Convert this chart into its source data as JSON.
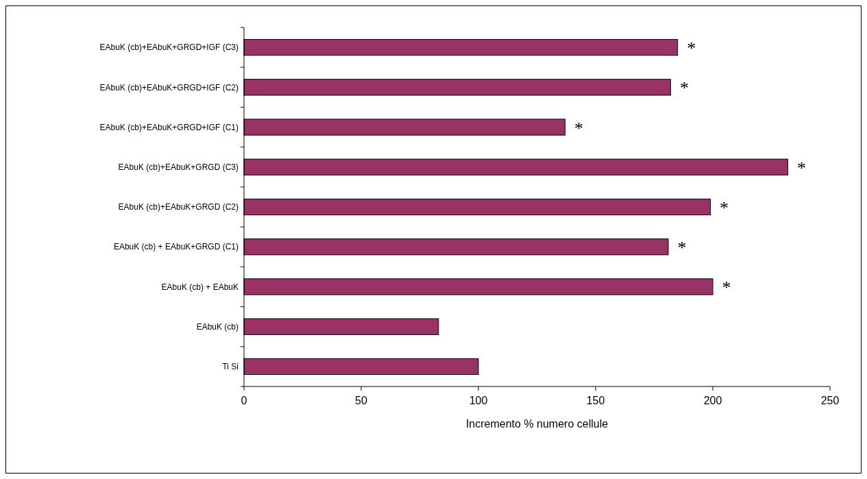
{
  "chart_data": {
    "type": "bar",
    "orientation": "horizontal",
    "xlabel": "Incremento % numero cellule",
    "categories": [
      "EAbuK (cb)+EAbuK+GRGD+IGF (C3)",
      "EAbuK (cb)+EAbuK+GRGD+IGF (C2)",
      "EAbuK (cb)+EAbuK+GRGD+IGF (C1)",
      "EAbuK (cb)+EAbuK+GRGD (C3)",
      "EAbuK (cb)+EAbuK+GRGD (C2)",
      "EAbuK (cb) + EAbuK+GRGD (C1)",
      "EAbuK (cb) + EAbuK",
      "EAbuK (cb)",
      "Ti Si"
    ],
    "values": [
      185,
      182,
      137,
      232,
      199,
      181,
      200,
      83,
      100
    ],
    "color": "#993366",
    "xlim": [
      0,
      250
    ],
    "xticks": [
      0,
      50,
      100,
      150,
      200,
      250
    ],
    "grid": false,
    "annotations": [
      {
        "text": "*",
        "x": 185,
        "y": "EAbuK (cb)+EAbuK+GRGD+IGF (C3)"
      },
      {
        "text": "*",
        "x": 182,
        "y": "EAbuK (cb)+EAbuK+GRGD+IGF (C2)"
      },
      {
        "text": "*",
        "x": 137,
        "y": "EAbuK (cb)+EAbuK+GRGD+IGF (C1)"
      },
      {
        "text": "*",
        "x": 232,
        "y": "EAbuK (cb)+EAbuK+GRGD (C3)"
      },
      {
        "text": "*",
        "x": 199,
        "y": "EAbuK (cb)+EAbuK+GRGD (C2)"
      },
      {
        "text": "*",
        "x": 181,
        "y": "EAbuK (cb) + EAbuK+GRGD (C1)"
      },
      {
        "text": "*",
        "x": 200,
        "y": "EAbuK (cb) + EAbuK"
      }
    ]
  }
}
